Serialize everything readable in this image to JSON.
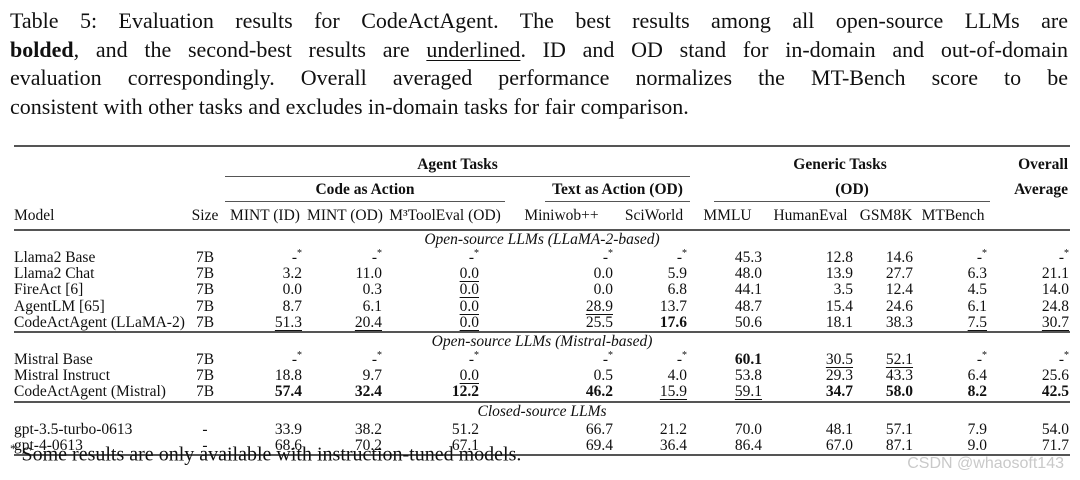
{
  "caption": {
    "lines": [
      {
        "justify": true,
        "segments": [
          {
            "t": "Table 5: Evaluation results for CodeActAgent. The best results among all open-source LLMs are"
          }
        ]
      },
      {
        "justify": true,
        "segments": [
          {
            "t": "bolded",
            "style": "b"
          },
          {
            "t": ", and the second-best results are "
          },
          {
            "t": "underlined",
            "style": "u"
          },
          {
            "t": ". ID and OD stand for in-domain and out-of-domain"
          }
        ]
      },
      {
        "justify": true,
        "segments": [
          {
            "t": "evaluation correspondingly. Overall averaged performance normalizes the MT-Bench score to be"
          }
        ]
      },
      {
        "justify": false,
        "segments": [
          {
            "t": "consistent with other tasks and excludes in-domain tasks for fair comparison."
          }
        ]
      }
    ]
  },
  "table": {
    "na_value": "-",
    "na_marker": "*",
    "header": {
      "agent_tasks": "Agent Tasks",
      "code_as_action": "Code as Action",
      "text_as_action": "Text as Action (OD)",
      "generic_tasks": "Generic Tasks",
      "generic_od": "(OD)",
      "overall_line1": "Overall",
      "overall_line2": "Average",
      "columns": [
        "Model",
        "Size",
        "MINT (ID)",
        "MINT (OD)",
        "M³ToolEval (OD)",
        "Miniwob++",
        "SciWorld",
        "MMLU",
        "HumanEval",
        "GSM8K",
        "MTBench"
      ]
    },
    "style_legend": {
      "b": "bold (best open-source)",
      "u": "underlined (second-best)",
      "a": "dash with superscript asterisk"
    },
    "sections": [
      {
        "label": "Open-source LLMs (LLaMA-2-based)",
        "rows": [
          {
            "model": "Llama2 Base",
            "size": "7B",
            "cells": [
              [
                "-",
                "a"
              ],
              [
                "-",
                "a"
              ],
              [
                "-",
                "a"
              ],
              [
                "-",
                "a"
              ],
              [
                "-",
                "a"
              ],
              [
                "45.3",
                ""
              ],
              [
                "12.8",
                ""
              ],
              [
                "14.6",
                ""
              ],
              [
                "-",
                "a"
              ],
              [
                "-",
                "a"
              ]
            ]
          },
          {
            "model": "Llama2 Chat",
            "size": "7B",
            "cells": [
              [
                "3.2",
                ""
              ],
              [
                "11.0",
                ""
              ],
              [
                "0.0",
                "u"
              ],
              [
                "0.0",
                ""
              ],
              [
                "5.9",
                ""
              ],
              [
                "48.0",
                ""
              ],
              [
                "13.9",
                ""
              ],
              [
                "27.7",
                ""
              ],
              [
                "6.3",
                ""
              ],
              [
                "21.1",
                ""
              ]
            ]
          },
          {
            "model": "FireAct [6]",
            "size": "7B",
            "cells": [
              [
                "0.0",
                ""
              ],
              [
                "0.3",
                ""
              ],
              [
                "0.0",
                "u"
              ],
              [
                "0.0",
                ""
              ],
              [
                "6.8",
                ""
              ],
              [
                "44.1",
                ""
              ],
              [
                "3.5",
                ""
              ],
              [
                "12.4",
                ""
              ],
              [
                "4.5",
                ""
              ],
              [
                "14.0",
                ""
              ]
            ]
          },
          {
            "model": "AgentLM [65]",
            "size": "7B",
            "cells": [
              [
                "8.7",
                ""
              ],
              [
                "6.1",
                ""
              ],
              [
                "0.0",
                "u"
              ],
              [
                "28.9",
                "u"
              ],
              [
                "13.7",
                ""
              ],
              [
                "48.7",
                ""
              ],
              [
                "15.4",
                ""
              ],
              [
                "24.6",
                ""
              ],
              [
                "6.1",
                ""
              ],
              [
                "24.8",
                ""
              ]
            ]
          },
          {
            "model": "CodeActAgent (LLaMA-2)",
            "size": "7B",
            "cells": [
              [
                "51.3",
                "u"
              ],
              [
                "20.4",
                "u"
              ],
              [
                "0.0",
                "u"
              ],
              [
                "25.5",
                ""
              ],
              [
                "17.6",
                "b"
              ],
              [
                "50.6",
                ""
              ],
              [
                "18.1",
                ""
              ],
              [
                "38.3",
                ""
              ],
              [
                "7.5",
                "u"
              ],
              [
                "30.7",
                "u"
              ]
            ]
          }
        ]
      },
      {
        "label": "Open-source LLMs (Mistral-based)",
        "rows": [
          {
            "model": "Mistral Base",
            "size": "7B",
            "cells": [
              [
                "-",
                "a"
              ],
              [
                "-",
                "a"
              ],
              [
                "-",
                "a"
              ],
              [
                "-",
                "a"
              ],
              [
                "-",
                "a"
              ],
              [
                "60.1",
                "b"
              ],
              [
                "30.5",
                "u"
              ],
              [
                "52.1",
                "u"
              ],
              [
                "-",
                "a"
              ],
              [
                "-",
                "a"
              ]
            ]
          },
          {
            "model": "Mistral Instruct",
            "size": "7B",
            "cells": [
              [
                "18.8",
                ""
              ],
              [
                "9.7",
                ""
              ],
              [
                "0.0",
                "u"
              ],
              [
                "0.5",
                ""
              ],
              [
                "4.0",
                ""
              ],
              [
                "53.8",
                ""
              ],
              [
                "29.3",
                ""
              ],
              [
                "43.3",
                ""
              ],
              [
                "6.4",
                ""
              ],
              [
                "25.6",
                ""
              ]
            ]
          },
          {
            "model": "CodeActAgent (Mistral)",
            "size": "7B",
            "cells": [
              [
                "57.4",
                "b"
              ],
              [
                "32.4",
                "b"
              ],
              [
                "12.2",
                "b"
              ],
              [
                "46.2",
                "b"
              ],
              [
                "15.9",
                "u"
              ],
              [
                "59.1",
                "u"
              ],
              [
                "34.7",
                "b"
              ],
              [
                "58.0",
                "b"
              ],
              [
                "8.2",
                "b"
              ],
              [
                "42.5",
                "b"
              ]
            ]
          }
        ]
      },
      {
        "label": "Closed-source LLMs",
        "rows": [
          {
            "model": "gpt-3.5-turbo-0613",
            "size": "-",
            "cells": [
              [
                "33.9",
                ""
              ],
              [
                "38.2",
                ""
              ],
              [
                "51.2",
                ""
              ],
              [
                "66.7",
                ""
              ],
              [
                "21.2",
                ""
              ],
              [
                "70.0",
                ""
              ],
              [
                "48.1",
                ""
              ],
              [
                "57.1",
                ""
              ],
              [
                "7.9",
                ""
              ],
              [
                "54.0",
                ""
              ]
            ]
          },
          {
            "model": "gpt-4-0613",
            "size": "-",
            "cells": [
              [
                "68.6",
                ""
              ],
              [
                "70.2",
                ""
              ],
              [
                "67.1",
                ""
              ],
              [
                "69.4",
                ""
              ],
              [
                "36.4",
                ""
              ],
              [
                "86.4",
                ""
              ],
              [
                "67.0",
                ""
              ],
              [
                "87.1",
                ""
              ],
              [
                "9.0",
                ""
              ],
              [
                "71.7",
                ""
              ]
            ]
          }
        ]
      }
    ]
  },
  "footnote": {
    "symbol": "*",
    "text": "Some results are only available with instruction-tuned models."
  },
  "watermark": {
    "text": "CSDN @whaosoft143"
  }
}
